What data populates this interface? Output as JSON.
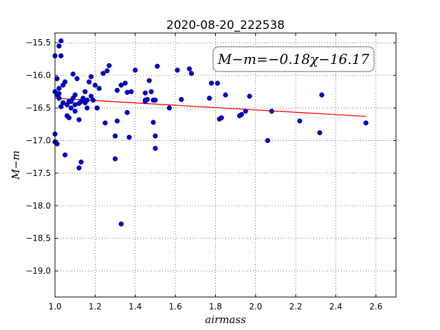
{
  "chart_data": {
    "type": "scatter",
    "title": "2020-08-20_222538",
    "xlabel": "airmass",
    "ylabel": "M−m",
    "xlim": [
      1.0,
      2.7
    ],
    "ylim": [
      -19.4,
      -15.35
    ],
    "y_inverted": true,
    "grid": true,
    "x_ticks": [
      1.0,
      1.2,
      1.4,
      1.6,
      1.8,
      2.0,
      2.2,
      2.4,
      2.6
    ],
    "x_tick_labels": [
      "1.0",
      "1.2",
      "1.4",
      "1.6",
      "1.8",
      "2.0",
      "2.2",
      "2.4",
      "2.6"
    ],
    "y_ticks": [
      -15.5,
      -16.0,
      -16.5,
      -17.0,
      -17.5,
      -18.0,
      -18.5,
      -19.0
    ],
    "y_tick_labels": [
      "−15.5",
      "−16.0",
      "−16.5",
      "−17.0",
      "−17.5",
      "−18.0",
      "−18.5",
      "−19.0"
    ],
    "annotation": "M−m=−0.18χ−16.17",
    "colors": {
      "points": "#0000cc",
      "fit": "#ff0000",
      "frame": "#000000"
    },
    "fit_line": {
      "slope": -0.18,
      "intercept": -16.17,
      "x_range": [
        1.0,
        2.55
      ]
    },
    "points": {
      "x": [
        1.0,
        1.0,
        1.01,
        1.01,
        1.02,
        1.02,
        1.03,
        1.03,
        1.04,
        1.05,
        1.06,
        1.07,
        1.08,
        1.09,
        1.1,
        1.1,
        1.11,
        1.12,
        1.13,
        1.14,
        1.15,
        1.16,
        1.17,
        1.18,
        1.19,
        1.2,
        1.21,
        1.22,
        1.24,
        1.25,
        1.26,
        1.27,
        1.3,
        1.31,
        1.33,
        1.35,
        1.36,
        1.37,
        1.38,
        1.4,
        1.45,
        1.46,
        1.47,
        1.48,
        1.49,
        1.5,
        1.5,
        1.51,
        1.57,
        1.61,
        1.63,
        1.67,
        1.68,
        1.77,
        1.78,
        1.81,
        1.82,
        1.83,
        1.85,
        1.92,
        1.93,
        1.95,
        1.97,
        2.06,
        2.08,
        2.22,
        2.32,
        2.33,
        2.55,
        1.0,
        1.01,
        1.02,
        1.03,
        1.04,
        1.06,
        1.08,
        1.1,
        1.12,
        1.13,
        1.15,
        1.31,
        1.33,
        1.45,
        1.49,
        1.0,
        1.02,
        1.05,
        1.07,
        1.09,
        1.12,
        1.14,
        1.16,
        1.18,
        1.21,
        1.3,
        1.36,
        1.45,
        1.5
      ],
      "y": [
        -15.7,
        -16.25,
        -16.05,
        -16.3,
        -15.55,
        -16.2,
        -15.47,
        -15.7,
        -16.15,
        -16.1,
        -16.45,
        -16.65,
        -16.4,
        -16.35,
        -16.3,
        -16.45,
        -16.05,
        -16.68,
        -16.4,
        -16.35,
        -16.25,
        -16.38,
        -16.1,
        -16.02,
        -16.38,
        -16.15,
        -16.5,
        -16.2,
        -15.97,
        -16.73,
        -15.93,
        -15.85,
        -16.93,
        -16.23,
        -18.28,
        -16.12,
        -16.57,
        -16.95,
        -16.25,
        -15.92,
        -16.27,
        -16.37,
        -16.08,
        -16.25,
        -16.72,
        -16.38,
        -17.12,
        -15.86,
        -16.5,
        -15.92,
        -16.37,
        -15.9,
        -15.97,
        -16.35,
        -16.12,
        -16.12,
        -16.67,
        -16.65,
        -16.3,
        -16.62,
        -16.6,
        -16.55,
        -16.32,
        -17.0,
        -16.55,
        -16.7,
        -16.88,
        -16.3,
        -16.73,
        -16.9,
        -17.05,
        -16.35,
        -16.48,
        -16.42,
        -16.62,
        -16.5,
        -16.55,
        -17.42,
        -17.33,
        -16.42,
        -16.7,
        -16.15,
        -16.38,
        -16.38,
        -17.02,
        -16.28,
        -17.22,
        -16.4,
        -15.98,
        -16.43,
        -16.38,
        -16.5,
        -16.32,
        -16.5,
        -17.28,
        -16.26,
        -16.4,
        -16.93
      ]
    }
  }
}
